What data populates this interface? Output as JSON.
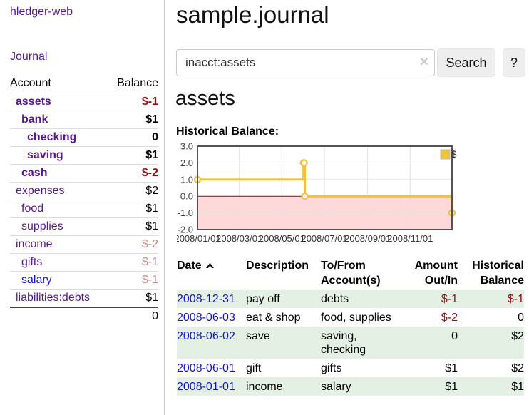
{
  "brand": "hledger-web",
  "sidebar": {
    "journal_link": "Journal",
    "accounts_table": {
      "headers": {
        "account": "Account",
        "balance": "Balance"
      },
      "rows": [
        {
          "name": "assets",
          "balance": "$-1",
          "depth": 1,
          "bold": true
        },
        {
          "name": "bank",
          "balance": "$1",
          "depth": 2,
          "bold": true
        },
        {
          "name": "checking",
          "balance": "0",
          "depth": 3,
          "bold": true
        },
        {
          "name": "saving",
          "balance": "$1",
          "depth": 3,
          "bold": true
        },
        {
          "name": "cash",
          "balance": "$-2",
          "depth": 2,
          "bold": true
        },
        {
          "name": "expenses",
          "balance": "$2",
          "depth": 1,
          "bold": false
        },
        {
          "name": "food",
          "balance": "$1",
          "depth": 2,
          "bold": false
        },
        {
          "name": "supplies",
          "balance": "$1",
          "depth": 2,
          "bold": false
        },
        {
          "name": "income",
          "balance": "$-2",
          "depth": 1,
          "bold": false
        },
        {
          "name": "gifts",
          "balance": "$-1",
          "depth": 2,
          "bold": false
        },
        {
          "name": "salary",
          "balance": "$-1",
          "depth": 2,
          "bold": false,
          "link_color": "blue"
        },
        {
          "name": "liabilities:debts",
          "balance": "$1",
          "depth": 1,
          "bold": false
        }
      ],
      "total": "0"
    }
  },
  "header": {
    "title": "sample.journal"
  },
  "search": {
    "value": "inacct:assets",
    "clear_icon": "×",
    "button": "Search",
    "help_button": "?"
  },
  "account_page": {
    "heading": "assets",
    "chart_label": "Historical Balance:"
  },
  "chart_data": {
    "type": "line",
    "title": "Historical Balance:",
    "step": true,
    "series": [
      {
        "name": "$",
        "color": "#edc240",
        "points": [
          [
            "2008-01-01",
            1
          ],
          [
            "2008-06-01",
            2
          ],
          [
            "2008-06-02",
            2
          ],
          [
            "2008-06-03",
            0
          ],
          [
            "2008-12-31",
            -1
          ]
        ]
      }
    ],
    "xlim": [
      "2008-01-01",
      "2008-12-31"
    ],
    "ylim": [
      -2,
      3
    ],
    "y_ticks": [
      "3.0",
      "2.0",
      "1.0",
      "0.0",
      "-1.0",
      "-2.0"
    ],
    "y_tick_values": [
      3,
      2,
      1,
      0,
      -1,
      -2
    ],
    "x_ticks": [
      "2008/01/01",
      "2008/03/01",
      "2008/05/01",
      "2008/07/01",
      "2008/09/01",
      "2008/11/01"
    ],
    "legend": {
      "label": "$",
      "position": "top-right"
    },
    "grid": true,
    "negative_region_color": "#ffd9d9",
    "zero_line_color": "#a00000",
    "border_color": "#545454",
    "grid_color": "#e2e2e2"
  },
  "register": {
    "headers": {
      "date": "Date",
      "description": "Description",
      "accounts": "To/From Account(s)",
      "amount": "Amount Out/In",
      "balance": "Historical Balance"
    },
    "rows": [
      {
        "date": "2008-12-31",
        "description": "pay off",
        "accounts": "debts",
        "amount": "$-1",
        "balance": "$-1"
      },
      {
        "date": "2008-06-03",
        "description": "eat & shop",
        "accounts": "food, supplies",
        "amount": "$-2",
        "balance": "0"
      },
      {
        "date": "2008-06-02",
        "description": "save",
        "accounts": "saving, checking",
        "amount": "0",
        "balance": "$2"
      },
      {
        "date": "2008-06-01",
        "description": "gift",
        "accounts": "gifts",
        "amount": "$1",
        "balance": "$2"
      },
      {
        "date": "2008-01-01",
        "description": "income",
        "accounts": "salary",
        "amount": "$1",
        "balance": "$1"
      }
    ]
  },
  "colors": {
    "link_purple": "#551a8b",
    "link_blue": "#1414cc",
    "negative_strong": "#8f1010",
    "negative_soft": "#c18a8a",
    "row_stripe_green": "#e3f0e3",
    "chart_series_yellow": "#edc240"
  }
}
